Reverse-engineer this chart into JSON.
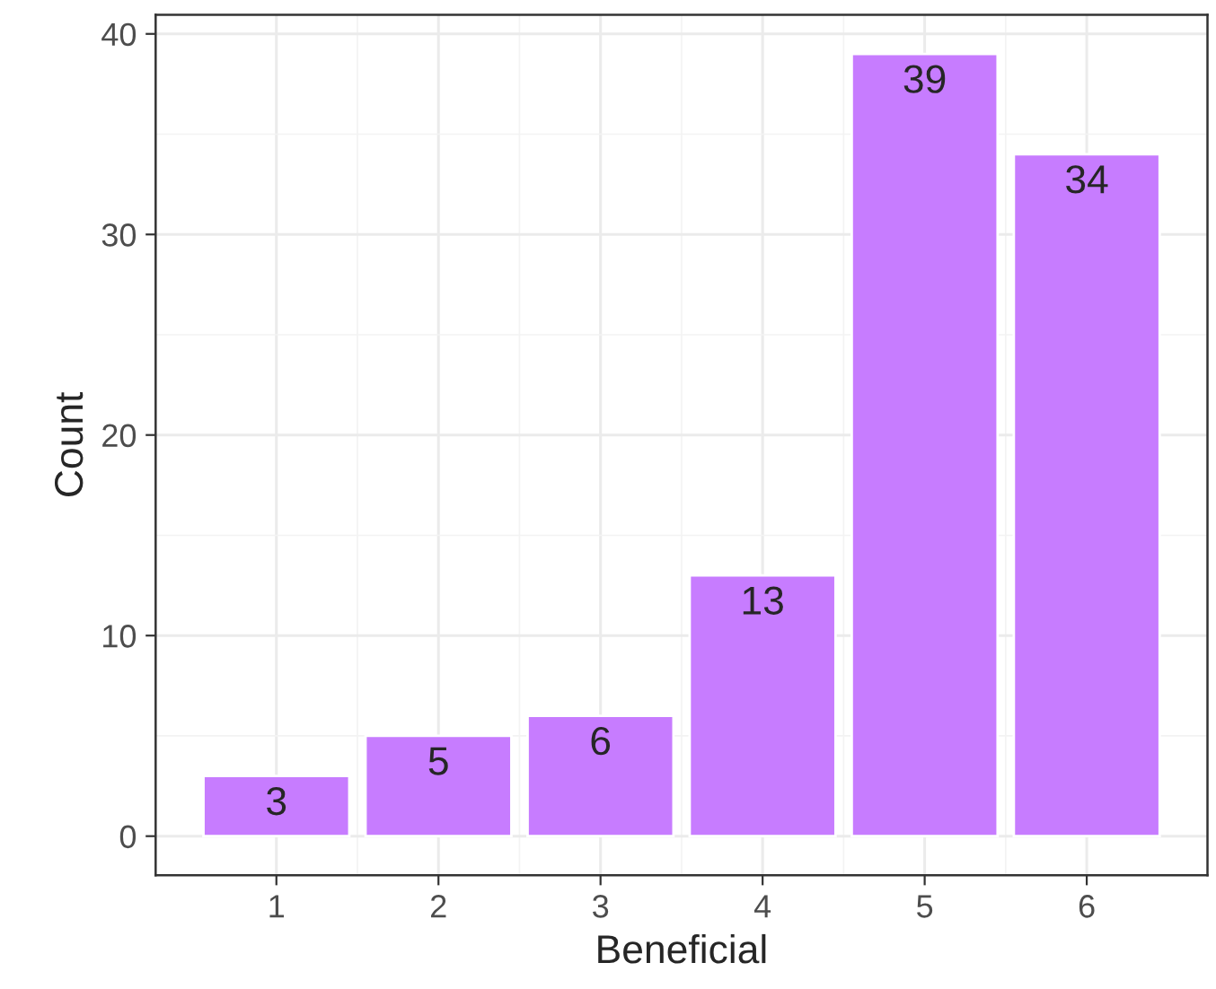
{
  "chart_data": {
    "type": "bar",
    "xlabel": "Beneficial",
    "ylabel": "Count",
    "x": [
      1,
      2,
      3,
      4,
      5,
      6
    ],
    "values": [
      3,
      5,
      6,
      13,
      39,
      34
    ],
    "color": "#c77cff",
    "xlim": [
      0.255,
      6.745
    ],
    "xticks": [
      1,
      2,
      3,
      4,
      5,
      6
    ],
    "ylim": [
      -1.95,
      40.95
    ],
    "yticks": [
      0,
      10,
      20,
      30,
      40
    ],
    "grid": true,
    "data_labels": true
  }
}
